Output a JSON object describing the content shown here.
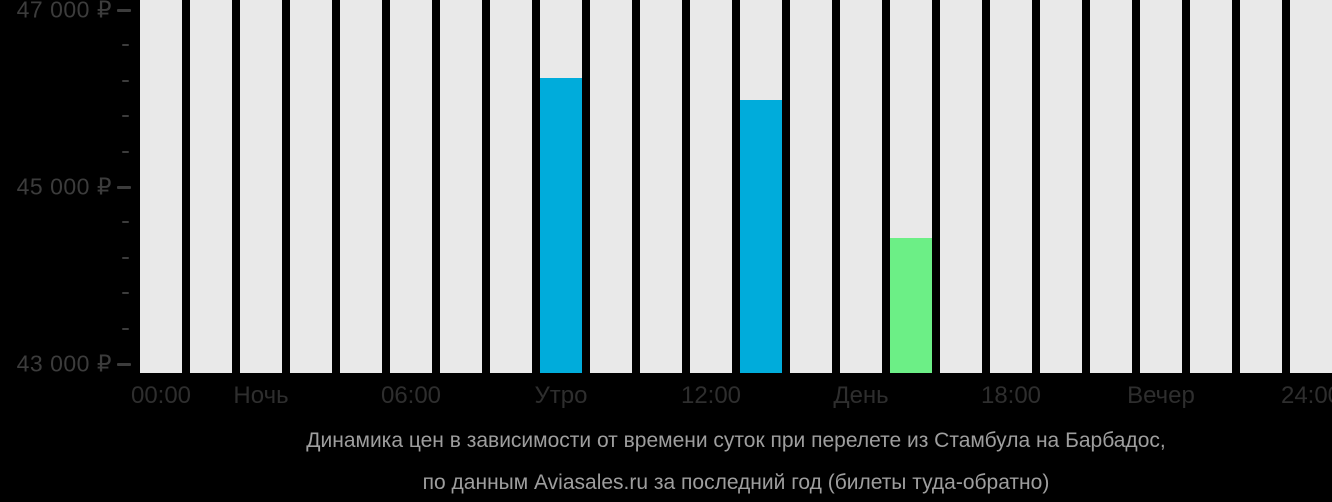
{
  "chart_data": {
    "type": "bar",
    "title": "Динамика цен в зависимости от времени суток при перелете из Стамбула на Барбадос, по данным Aviasales.ru за последний год (билеты туда-обратно)",
    "title_lines": [
      "Динамика цен в зависимости от времени суток при перелете из Стамбула на Барбадос,",
      "по данным Aviasales.ru за последний год (билеты туда-обратно)"
    ],
    "ylabel": "",
    "xlabel": "",
    "grid": "off",
    "legend": "none",
    "y_axis": {
      "unit": "₽",
      "range": [
        42900,
        47000
      ],
      "major_ticks": [
        {
          "label": "47 000 ₽",
          "value": 47000
        },
        {
          "label": "45 000 ₽",
          "value": 45000
        },
        {
          "label": "43 000 ₽",
          "value": 43000
        }
      ],
      "minor_tick_values": [
        46600,
        46200,
        45800,
        45400,
        44600,
        44200,
        43800,
        43400
      ]
    },
    "x_axis": {
      "hours_total": 24,
      "labels": [
        {
          "text": "00:00",
          "bar_index": 0
        },
        {
          "text": "Ночь",
          "bar_index": 2
        },
        {
          "text": "06:00",
          "bar_index": 5
        },
        {
          "text": "Утро",
          "bar_index": 8
        },
        {
          "text": "12:00",
          "bar_index": 11
        },
        {
          "text": "День",
          "bar_index": 14
        },
        {
          "text": "18:00",
          "bar_index": 17
        },
        {
          "text": "Вечер",
          "bar_index": 20
        },
        {
          "text": "24:00",
          "bar_index": 23
        }
      ]
    },
    "bars": [
      {
        "hour": 8,
        "value": 46230,
        "color_key": "price"
      },
      {
        "hour": 12,
        "value": 45980,
        "color_key": "price"
      },
      {
        "hour": 15,
        "value": 44420,
        "color_key": "min_price"
      }
    ],
    "no_data_hours_note": "all other 21 hour columns are full-height light grey placeholders",
    "colors": {
      "background": "#000000",
      "no_data_bar": "#E9E9E9",
      "price_bar": "#00ACDB",
      "min_price_bar": "#6CEF86",
      "y_axis_text": "#3C3C3C",
      "x_axis_text": "#2E2E2E",
      "caption_text": "#9E9E9E"
    }
  }
}
